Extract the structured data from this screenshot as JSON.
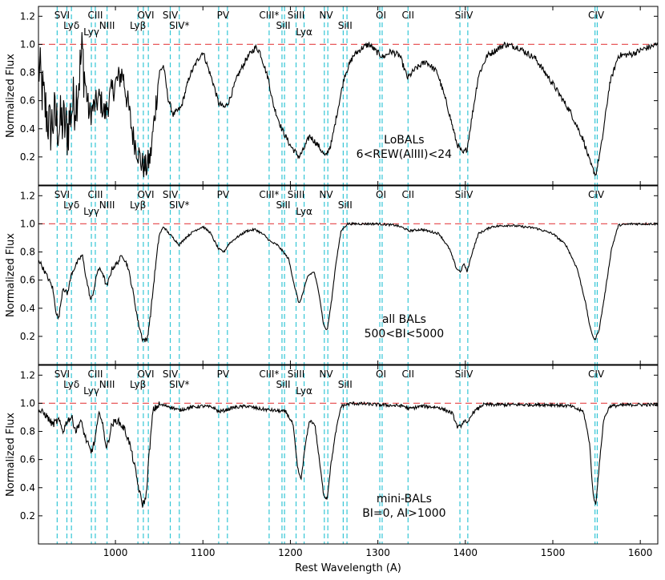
{
  "chart_data": {
    "type": "line",
    "xlabel": "Rest Wavelength (A)",
    "ylabel": "Normalized Flux",
    "xlim": [
      912,
      1620
    ],
    "ylim": [
      0.0,
      1.27
    ],
    "x_ticks": [
      1000,
      1100,
      1200,
      1300,
      1400,
      1500,
      1600
    ],
    "y_ticks": [
      0.2,
      0.4,
      0.6,
      0.8,
      1.0,
      1.2
    ],
    "y_tick_labels": [
      "0.2",
      "0.4",
      "0.6",
      "0.8",
      "1.0",
      "1.2"
    ],
    "reference_line": {
      "y": 1.0,
      "style": "dashed",
      "color": "#e8595a"
    },
    "line_marker_color": "#35c6d6",
    "spectrum_color": "#000000",
    "lines": [
      {
        "label": "SVI",
        "waves": [
          933.4,
          944.5
        ],
        "row": 1
      },
      {
        "label": "Lyδ",
        "waves": [
          949.7
        ],
        "row": 2
      },
      {
        "label": "Lyγ",
        "waves": [
          972.5
        ],
        "row": 3
      },
      {
        "label": "CIII",
        "waves": [
          977.0
        ],
        "row": 1
      },
      {
        "label": "NIII",
        "waves": [
          990.4
        ],
        "row": 2
      },
      {
        "label": "Lyβ",
        "waves": [
          1025.7
        ],
        "row": 2
      },
      {
        "label": "OVI",
        "waves": [
          1031.9,
          1037.6
        ],
        "row": 1
      },
      {
        "label": "SIV",
        "waves": [
          1062.7
        ],
        "row": 1
      },
      {
        "label": "SIV*",
        "waves": [
          1073.0
        ],
        "row": 2
      },
      {
        "label": "PV",
        "waves": [
          1118.0,
          1128.0
        ],
        "row": 1
      },
      {
        "label": "CIII*",
        "waves": [
          1175.7
        ],
        "row": 1
      },
      {
        "label": "SiII",
        "waves": [
          1190.4,
          1193.3
        ],
        "row": 2
      },
      {
        "label": "SiIII",
        "waves": [
          1206.5
        ],
        "row": 1
      },
      {
        "label": "Lyα",
        "waves": [
          1215.7
        ],
        "row": 3
      },
      {
        "label": "NV",
        "waves": [
          1238.8,
          1242.8
        ],
        "row": 1
      },
      {
        "label": "SiII",
        "waves": [
          1260.4,
          1264.7
        ],
        "row": 2
      },
      {
        "label": "OI",
        "waves": [
          1302.2,
          1304.9
        ],
        "row": 1
      },
      {
        "label": "CII",
        "waves": [
          1334.5
        ],
        "row": 1
      },
      {
        "label": "SiIV",
        "waves": [
          1393.8,
          1402.8
        ],
        "row": 1
      },
      {
        "label": "CIV",
        "waves": [
          1548.2,
          1550.8
        ],
        "row": 1
      }
    ],
    "panels": [
      {
        "labels": [
          "LoBALs",
          "6<REW(AlIII)<24"
        ],
        "noise": 0.022,
        "series": [
          [
            912,
            0.85
          ],
          [
            918,
            0.6
          ],
          [
            925,
            0.4
          ],
          [
            930,
            0.48
          ],
          [
            935,
            0.42
          ],
          [
            940,
            0.45
          ],
          [
            945,
            0.38
          ],
          [
            950,
            0.55
          ],
          [
            955,
            0.62
          ],
          [
            958,
            0.75
          ],
          [
            962,
            0.95
          ],
          [
            965,
            0.75
          ],
          [
            970,
            0.5
          ],
          [
            975,
            0.55
          ],
          [
            982,
            0.62
          ],
          [
            988,
            0.5
          ],
          [
            995,
            0.65
          ],
          [
            1000,
            0.72
          ],
          [
            1008,
            0.8
          ],
          [
            1015,
            0.55
          ],
          [
            1020,
            0.35
          ],
          [
            1025,
            0.25
          ],
          [
            1030,
            0.15
          ],
          [
            1035,
            0.12
          ],
          [
            1040,
            0.2
          ],
          [
            1045,
            0.5
          ],
          [
            1050,
            0.8
          ],
          [
            1055,
            0.85
          ],
          [
            1060,
            0.62
          ],
          [
            1066,
            0.5
          ],
          [
            1075,
            0.55
          ],
          [
            1085,
            0.78
          ],
          [
            1095,
            0.9
          ],
          [
            1100,
            0.95
          ],
          [
            1105,
            0.85
          ],
          [
            1112,
            0.72
          ],
          [
            1118,
            0.58
          ],
          [
            1125,
            0.55
          ],
          [
            1130,
            0.6
          ],
          [
            1140,
            0.78
          ],
          [
            1150,
            0.9
          ],
          [
            1160,
            0.98
          ],
          [
            1165,
            0.95
          ],
          [
            1175,
            0.75
          ],
          [
            1180,
            0.58
          ],
          [
            1190,
            0.4
          ],
          [
            1200,
            0.28
          ],
          [
            1210,
            0.2
          ],
          [
            1215,
            0.25
          ],
          [
            1222,
            0.35
          ],
          [
            1232,
            0.28
          ],
          [
            1240,
            0.2
          ],
          [
            1247,
            0.3
          ],
          [
            1253,
            0.5
          ],
          [
            1262,
            0.78
          ],
          [
            1272,
            0.92
          ],
          [
            1283,
            0.98
          ],
          [
            1290,
            1.0
          ],
          [
            1298,
            0.95
          ],
          [
            1306,
            0.91
          ],
          [
            1315,
            0.95
          ],
          [
            1325,
            0.92
          ],
          [
            1334,
            0.76
          ],
          [
            1342,
            0.82
          ],
          [
            1355,
            0.88
          ],
          [
            1368,
            0.8
          ],
          [
            1380,
            0.55
          ],
          [
            1390,
            0.3
          ],
          [
            1397,
            0.22
          ],
          [
            1402,
            0.26
          ],
          [
            1408,
            0.5
          ],
          [
            1415,
            0.78
          ],
          [
            1425,
            0.92
          ],
          [
            1445,
            1.0
          ],
          [
            1460,
            0.98
          ],
          [
            1480,
            0.9
          ],
          [
            1500,
            0.72
          ],
          [
            1520,
            0.52
          ],
          [
            1535,
            0.32
          ],
          [
            1543,
            0.15
          ],
          [
            1549,
            0.07
          ],
          [
            1556,
            0.3
          ],
          [
            1565,
            0.72
          ],
          [
            1575,
            0.92
          ],
          [
            1590,
            0.93
          ],
          [
            1605,
            0.97
          ],
          [
            1620,
            1.0
          ]
        ]
      },
      {
        "labels": [
          "all BALs",
          "500<BI<5000"
        ],
        "noise": 0.008,
        "series": [
          [
            912,
            0.75
          ],
          [
            920,
            0.65
          ],
          [
            928,
            0.55
          ],
          [
            932,
            0.38
          ],
          [
            935,
            0.32
          ],
          [
            940,
            0.55
          ],
          [
            945,
            0.5
          ],
          [
            950,
            0.65
          ],
          [
            956,
            0.72
          ],
          [
            962,
            0.78
          ],
          [
            967,
            0.6
          ],
          [
            972,
            0.45
          ],
          [
            976,
            0.55
          ],
          [
            980,
            0.68
          ],
          [
            985,
            0.66
          ],
          [
            990,
            0.55
          ],
          [
            996,
            0.68
          ],
          [
            1002,
            0.72
          ],
          [
            1008,
            0.78
          ],
          [
            1014,
            0.7
          ],
          [
            1020,
            0.52
          ],
          [
            1026,
            0.3
          ],
          [
            1031,
            0.18
          ],
          [
            1036,
            0.17
          ],
          [
            1040,
            0.35
          ],
          [
            1045,
            0.65
          ],
          [
            1050,
            0.92
          ],
          [
            1055,
            0.98
          ],
          [
            1060,
            0.94
          ],
          [
            1066,
            0.9
          ],
          [
            1073,
            0.85
          ],
          [
            1080,
            0.9
          ],
          [
            1090,
            0.95
          ],
          [
            1100,
            0.98
          ],
          [
            1108,
            0.94
          ],
          [
            1113,
            0.88
          ],
          [
            1118,
            0.82
          ],
          [
            1124,
            0.8
          ],
          [
            1130,
            0.86
          ],
          [
            1138,
            0.9
          ],
          [
            1150,
            0.95
          ],
          [
            1160,
            0.96
          ],
          [
            1170,
            0.92
          ],
          [
            1178,
            0.87
          ],
          [
            1185,
            0.85
          ],
          [
            1192,
            0.8
          ],
          [
            1198,
            0.75
          ],
          [
            1205,
            0.55
          ],
          [
            1210,
            0.43
          ],
          [
            1215,
            0.52
          ],
          [
            1220,
            0.63
          ],
          [
            1227,
            0.66
          ],
          [
            1233,
            0.5
          ],
          [
            1238,
            0.28
          ],
          [
            1242,
            0.24
          ],
          [
            1247,
            0.45
          ],
          [
            1252,
            0.72
          ],
          [
            1258,
            0.95
          ],
          [
            1265,
            1.0
          ],
          [
            1300,
            1.0
          ],
          [
            1320,
            0.99
          ],
          [
            1330,
            0.97
          ],
          [
            1335,
            0.95
          ],
          [
            1350,
            0.96
          ],
          [
            1370,
            0.93
          ],
          [
            1382,
            0.82
          ],
          [
            1390,
            0.68
          ],
          [
            1395,
            0.66
          ],
          [
            1398,
            0.72
          ],
          [
            1402,
            0.66
          ],
          [
            1408,
            0.8
          ],
          [
            1415,
            0.93
          ],
          [
            1430,
            0.98
          ],
          [
            1450,
            0.99
          ],
          [
            1480,
            0.97
          ],
          [
            1500,
            0.93
          ],
          [
            1515,
            0.85
          ],
          [
            1528,
            0.68
          ],
          [
            1537,
            0.45
          ],
          [
            1543,
            0.25
          ],
          [
            1548,
            0.17
          ],
          [
            1553,
            0.25
          ],
          [
            1560,
            0.52
          ],
          [
            1567,
            0.82
          ],
          [
            1575,
            0.99
          ],
          [
            1590,
            1.0
          ],
          [
            1620,
            1.0
          ]
        ]
      },
      {
        "labels": [
          "mini-BALs",
          "BI=0, AI>1000"
        ],
        "noise": 0.012,
        "series": [
          [
            912,
            0.95
          ],
          [
            920,
            0.92
          ],
          [
            928,
            0.85
          ],
          [
            935,
            0.88
          ],
          [
            940,
            0.8
          ],
          [
            945,
            0.88
          ],
          [
            950,
            0.9
          ],
          [
            955,
            0.8
          ],
          [
            960,
            0.88
          ],
          [
            966,
            0.75
          ],
          [
            972,
            0.65
          ],
          [
            976,
            0.72
          ],
          [
            982,
            0.95
          ],
          [
            986,
            0.82
          ],
          [
            990,
            0.68
          ],
          [
            996,
            0.85
          ],
          [
            1002,
            0.88
          ],
          [
            1010,
            0.82
          ],
          [
            1016,
            0.72
          ],
          [
            1022,
            0.55
          ],
          [
            1027,
            0.38
          ],
          [
            1031,
            0.28
          ],
          [
            1035,
            0.33
          ],
          [
            1038,
            0.6
          ],
          [
            1043,
            0.95
          ],
          [
            1050,
            0.99
          ],
          [
            1060,
            0.98
          ],
          [
            1065,
            0.97
          ],
          [
            1073,
            0.95
          ],
          [
            1085,
            0.97
          ],
          [
            1100,
            0.98
          ],
          [
            1112,
            0.97
          ],
          [
            1118,
            0.94
          ],
          [
            1125,
            0.95
          ],
          [
            1135,
            0.97
          ],
          [
            1150,
            0.98
          ],
          [
            1165,
            0.96
          ],
          [
            1180,
            0.95
          ],
          [
            1195,
            0.94
          ],
          [
            1203,
            0.85
          ],
          [
            1208,
            0.55
          ],
          [
            1212,
            0.45
          ],
          [
            1217,
            0.7
          ],
          [
            1222,
            0.88
          ],
          [
            1228,
            0.85
          ],
          [
            1233,
            0.6
          ],
          [
            1238,
            0.35
          ],
          [
            1242,
            0.32
          ],
          [
            1246,
            0.55
          ],
          [
            1252,
            0.8
          ],
          [
            1258,
            0.98
          ],
          [
            1270,
            1.0
          ],
          [
            1300,
            0.99
          ],
          [
            1330,
            0.98
          ],
          [
            1335,
            0.96
          ],
          [
            1350,
            0.98
          ],
          [
            1370,
            0.97
          ],
          [
            1385,
            0.93
          ],
          [
            1391,
            0.83
          ],
          [
            1395,
            0.84
          ],
          [
            1399,
            0.88
          ],
          [
            1402,
            0.85
          ],
          [
            1408,
            0.93
          ],
          [
            1420,
            0.99
          ],
          [
            1450,
            0.99
          ],
          [
            1500,
            0.99
          ],
          [
            1520,
            0.98
          ],
          [
            1535,
            0.94
          ],
          [
            1542,
            0.72
          ],
          [
            1546,
            0.35
          ],
          [
            1549,
            0.28
          ],
          [
            1553,
            0.55
          ],
          [
            1558,
            0.88
          ],
          [
            1565,
            0.98
          ],
          [
            1590,
            0.99
          ],
          [
            1620,
            0.99
          ]
        ]
      }
    ]
  }
}
